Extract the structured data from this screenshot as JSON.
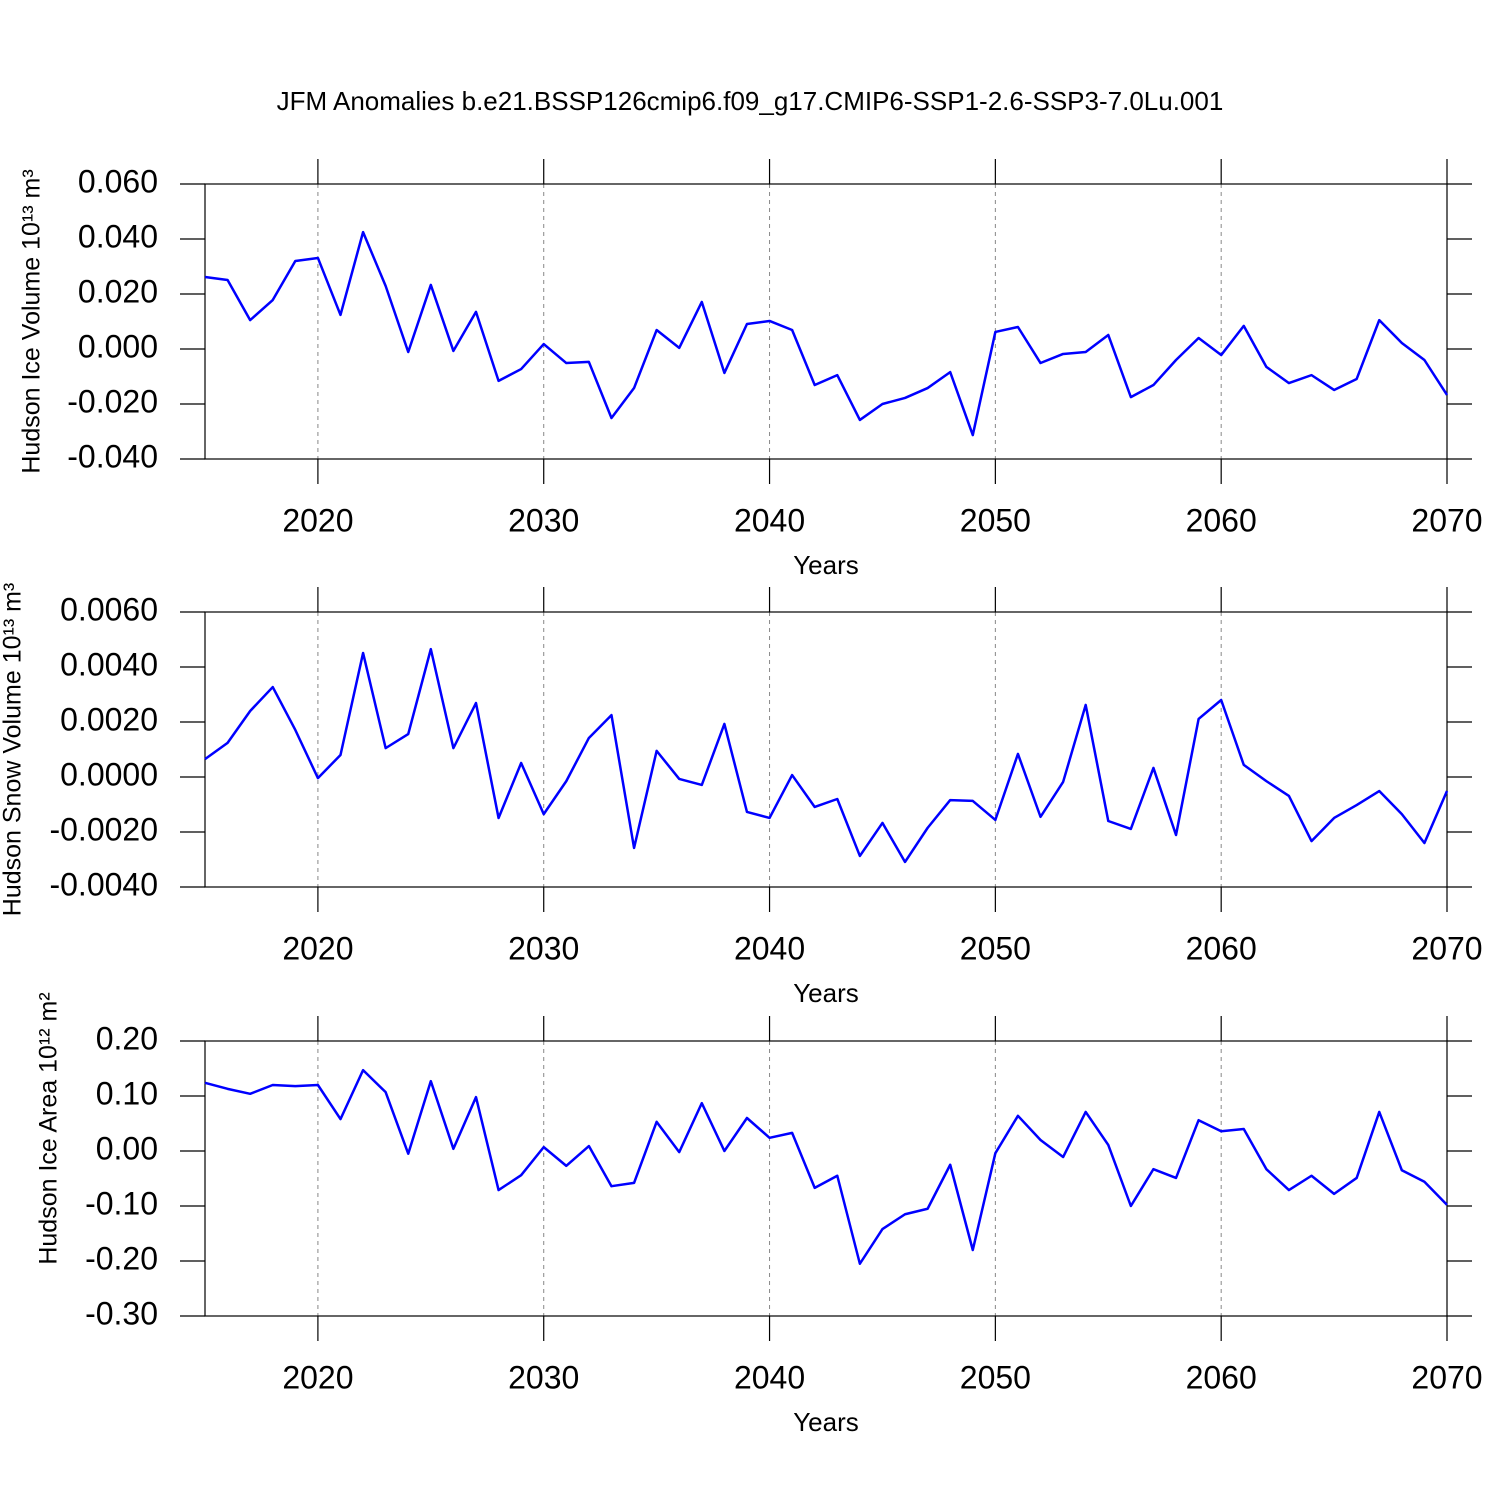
{
  "chart_data": [
    {
      "type": "line",
      "title": "JFM Anomalies b.e21.BSSP126cmip6.f09_g17.CMIP6-SSP1-2.6-SSP3-7.0Lu.001",
      "xlabel": "Years",
      "ylabel": "Hudson Ice Volume 10¹³ m³",
      "x": [
        2015,
        2016,
        2017,
        2018,
        2019,
        2020,
        2021,
        2022,
        2023,
        2024,
        2025,
        2026,
        2027,
        2028,
        2029,
        2030,
        2031,
        2032,
        2033,
        2034,
        2035,
        2036,
        2037,
        2038,
        2039,
        2040,
        2041,
        2042,
        2043,
        2044,
        2045,
        2046,
        2047,
        2048,
        2049,
        2050,
        2051,
        2052,
        2053,
        2054,
        2055,
        2056,
        2057,
        2058,
        2059,
        2060,
        2061,
        2062,
        2063,
        2064,
        2065,
        2066,
        2067,
        2068,
        2069,
        2070
      ],
      "series": [
        {
          "color": "#0000ff",
          "values": [
            0.0262,
            0.0251,
            0.0105,
            0.0178,
            0.032,
            0.0331,
            0.0124,
            0.0425,
            0.0229,
            -0.0011,
            0.0233,
            -0.0007,
            0.0135,
            -0.0116,
            -0.0073,
            0.0018,
            -0.0051,
            -0.0047,
            -0.0251,
            -0.0142,
            0.0069,
            0.0004,
            0.0171,
            -0.0087,
            0.0091,
            0.0102,
            0.0069,
            -0.0131,
            -0.0095,
            -0.0258,
            -0.02,
            -0.0178,
            -0.0142,
            -0.0084,
            -0.0313,
            0.0062,
            0.008,
            -0.0051,
            -0.0018,
            -0.0011,
            0.0051,
            -0.0175,
            -0.0131,
            -0.004,
            0.004,
            -0.0022,
            0.0084,
            -0.0065,
            -0.0124,
            -0.0095,
            -0.0149,
            -0.0109,
            0.0105,
            0.0022,
            -0.004,
            -0.0167
          ]
        }
      ],
      "xlim": [
        2015,
        2070
      ],
      "xticks": [
        2020,
        2030,
        2040,
        2050,
        2060,
        2070
      ],
      "ylim": [
        -0.04,
        0.06
      ],
      "yticks": [
        {
          "value": -0.04,
          "label": "-0.040"
        },
        {
          "value": -0.02,
          "label": "-0.020"
        },
        {
          "value": 0,
          "label": "0.000"
        },
        {
          "value": 0.02,
          "label": "0.020"
        },
        {
          "value": 0.04,
          "label": "0.040"
        },
        {
          "value": 0.06,
          "label": "0.060"
        }
      ],
      "grid": true
    },
    {
      "type": "line",
      "xlabel": "Years",
      "ylabel": "Hudson Snow Volume 10¹³ m³",
      "x": [
        2015,
        2016,
        2017,
        2018,
        2019,
        2020,
        2021,
        2022,
        2023,
        2024,
        2025,
        2026,
        2027,
        2028,
        2029,
        2030,
        2031,
        2032,
        2033,
        2034,
        2035,
        2036,
        2037,
        2038,
        2039,
        2040,
        2041,
        2042,
        2043,
        2044,
        2045,
        2046,
        2047,
        2048,
        2049,
        2050,
        2051,
        2052,
        2053,
        2054,
        2055,
        2056,
        2057,
        2058,
        2059,
        2060,
        2061,
        2062,
        2063,
        2064,
        2065,
        2066,
        2067,
        2068,
        2069,
        2070
      ],
      "series": [
        {
          "color": "#0000ff",
          "values": [
            0.00065,
            0.00124,
            0.0024,
            0.00327,
            0.00171,
            -4e-05,
            0.0008,
            0.00451,
            0.00105,
            0.00156,
            0.00465,
            0.00105,
            0.00269,
            -0.00149,
            0.00051,
            -0.00135,
            -0.00015,
            0.00142,
            0.00225,
            -0.00258,
            0.00095,
            -7e-05,
            -0.00029,
            0.00193,
            -0.00127,
            -0.00149,
            7e-05,
            -0.00109,
            -0.0008,
            -0.00287,
            -0.00167,
            -0.00309,
            -0.00185,
            -0.00084,
            -0.00087,
            -0.00156,
            0.00084,
            -0.00145,
            -0.00018,
            0.00262,
            -0.0016,
            -0.00189,
            0.00033,
            -0.00211,
            0.00211,
            0.0028,
            0.00044,
            -0.00015,
            -0.00069,
            -0.00233,
            -0.00149,
            -0.00102,
            -0.00051,
            -0.00135,
            -0.0024,
            -0.00051
          ]
        }
      ],
      "xlim": [
        2015,
        2070
      ],
      "xticks": [
        2020,
        2030,
        2040,
        2050,
        2060,
        2070
      ],
      "ylim": [
        -0.004,
        0.006
      ],
      "yticks": [
        {
          "value": -0.004,
          "label": "-0.0040"
        },
        {
          "value": -0.002,
          "label": "-0.0020"
        },
        {
          "value": 0,
          "label": "0.0000"
        },
        {
          "value": 0.002,
          "label": "0.0020"
        },
        {
          "value": 0.004,
          "label": "0.0040"
        },
        {
          "value": 0.006,
          "label": "0.0060"
        }
      ],
      "grid": true
    },
    {
      "type": "line",
      "xlabel": "Years",
      "ylabel": "Hudson Ice Area 10¹² m²",
      "x": [
        2015,
        2016,
        2017,
        2018,
        2019,
        2020,
        2021,
        2022,
        2023,
        2024,
        2025,
        2026,
        2027,
        2028,
        2029,
        2030,
        2031,
        2032,
        2033,
        2034,
        2035,
        2036,
        2037,
        2038,
        2039,
        2040,
        2041,
        2042,
        2043,
        2044,
        2045,
        2046,
        2047,
        2048,
        2049,
        2050,
        2051,
        2052,
        2053,
        2054,
        2055,
        2056,
        2057,
        2058,
        2059,
        2060,
        2061,
        2062,
        2063,
        2064,
        2065,
        2066,
        2067,
        2068,
        2069,
        2070
      ],
      "series": [
        {
          "color": "#0000ff",
          "values": [
            0.124,
            0.113,
            0.104,
            0.12,
            0.118,
            0.12,
            0.058,
            0.147,
            0.107,
            -0.005,
            0.127,
            0.004,
            0.098,
            -0.071,
            -0.044,
            0.007,
            -0.027,
            0.009,
            -0.064,
            -0.058,
            0.053,
            -0.002,
            0.087,
            0,
            0.06,
            0.024,
            0.033,
            -0.067,
            -0.045,
            -0.205,
            -0.142,
            -0.115,
            -0.105,
            -0.025,
            -0.18,
            -0.004,
            0.064,
            0.02,
            -0.011,
            0.071,
            0.011,
            -0.1,
            -0.033,
            -0.049,
            0.056,
            0.036,
            0.04,
            -0.033,
            -0.071,
            -0.045,
            -0.078,
            -0.049,
            0.071,
            -0.035,
            -0.056,
            -0.098
          ]
        }
      ],
      "xlim": [
        2015,
        2070
      ],
      "xticks": [
        2020,
        2030,
        2040,
        2050,
        2060,
        2070
      ],
      "ylim": [
        -0.3,
        0.2
      ],
      "yticks": [
        {
          "value": -0.3,
          "label": "-0.30"
        },
        {
          "value": -0.2,
          "label": "-0.20"
        },
        {
          "value": -0.1,
          "label": "-0.10"
        },
        {
          "value": 0,
          "label": "0.00"
        },
        {
          "value": 0.1,
          "label": "0.10"
        },
        {
          "value": 0.2,
          "label": "0.20"
        }
      ],
      "grid": true
    }
  ]
}
